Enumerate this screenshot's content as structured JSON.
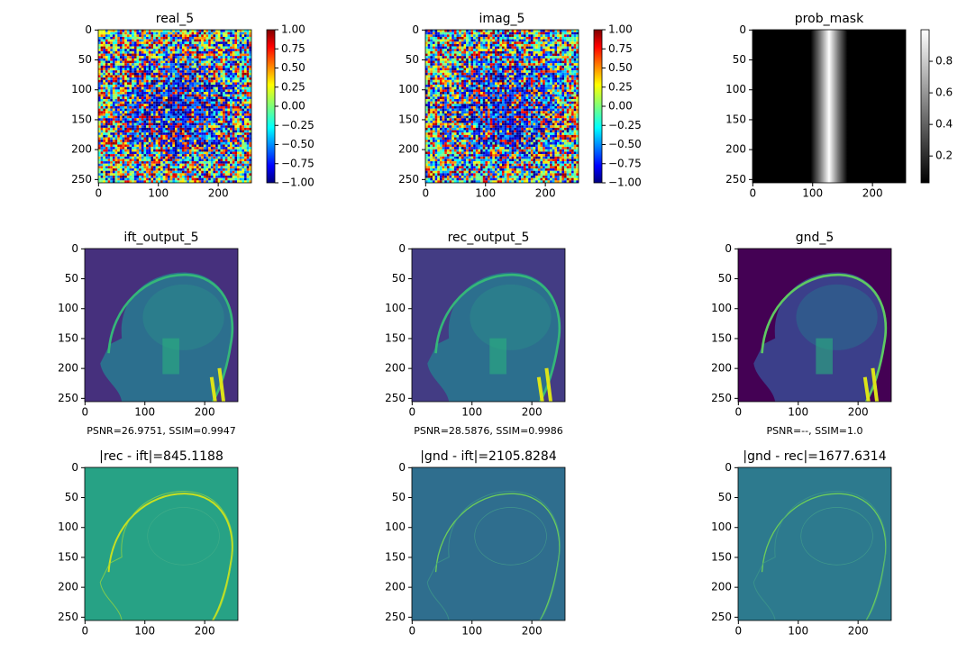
{
  "chart_data": [
    {
      "type": "image",
      "title": "real_5",
      "colormap": "jet",
      "xlim": [
        -0.5,
        255.5
      ],
      "ylim": [
        255.5,
        -0.5
      ],
      "xticks": [
        0,
        100,
        200
      ],
      "yticks": [
        0,
        50,
        100,
        150,
        200,
        250
      ],
      "colorbar": {
        "lim": [
          -1,
          1
        ],
        "ticks": [
          {
            "value": 1,
            "label": "1.00"
          },
          0.75,
          {
            "value": 0.5,
            "label": "0.50"
          },
          0.25,
          {
            "value": 0,
            "label": "0.00"
          },
          {
            "value": -0.25,
            "label": "−0.25"
          },
          {
            "value": -0.5,
            "label": "−0.50"
          },
          {
            "value": -0.75,
            "label": "−0.75"
          },
          {
            "value": -1,
            "label": "−1.00"
          }
        ]
      }
    },
    {
      "type": "image",
      "title": "imag_5",
      "colormap": "jet",
      "xlim": [
        -0.5,
        255.5
      ],
      "ylim": [
        255.5,
        -0.5
      ],
      "xticks": [
        0,
        100,
        200
      ],
      "yticks": [
        0,
        50,
        100,
        150,
        200,
        250
      ],
      "colorbar": {
        "lim": [
          -1,
          1
        ],
        "ticks": [
          {
            "value": 1,
            "label": "1.00"
          },
          0.75,
          {
            "value": 0.5,
            "label": "0.50"
          },
          0.25,
          {
            "value": 0,
            "label": "0.00"
          },
          {
            "value": -0.25,
            "label": "−0.25"
          },
          {
            "value": -0.5,
            "label": "−0.50"
          },
          {
            "value": -0.75,
            "label": "−0.75"
          },
          {
            "value": -1,
            "label": "−1.00"
          }
        ]
      }
    },
    {
      "type": "image",
      "title": "prob_mask",
      "colormap": "gray",
      "xlim": [
        -0.5,
        255.5
      ],
      "ylim": [
        255.5,
        -0.5
      ],
      "xticks": [
        0,
        100,
        200
      ],
      "yticks": [
        0,
        50,
        100,
        150,
        200,
        250
      ],
      "colorbar": {
        "lim": [
          0.03,
          1.0
        ],
        "ticks": [
          0.2,
          0.4,
          0.6,
          0.8
        ]
      }
    },
    {
      "type": "image",
      "title": "ift_output_5",
      "colormap": "viridis",
      "xlim": [
        -0.5,
        255.5
      ],
      "ylim": [
        255.5,
        -0.5
      ],
      "xticks": [
        0,
        100,
        200
      ],
      "yticks": [
        0,
        50,
        100,
        150,
        200,
        250
      ],
      "xlabel": "PSNR=26.9751, SSIM=0.9947"
    },
    {
      "type": "image",
      "title": "rec_output_5",
      "colormap": "viridis",
      "xlim": [
        -0.5,
        255.5
      ],
      "ylim": [
        255.5,
        -0.5
      ],
      "xticks": [
        0,
        100,
        200
      ],
      "yticks": [
        0,
        50,
        100,
        150,
        200,
        250
      ],
      "xlabel": "PSNR=28.5876, SSIM=0.9986"
    },
    {
      "type": "image",
      "title": "gnd_5",
      "colormap": "viridis",
      "xlim": [
        -0.5,
        255.5
      ],
      "ylim": [
        255.5,
        -0.5
      ],
      "xticks": [
        0,
        100,
        200
      ],
      "yticks": [
        0,
        50,
        100,
        150,
        200,
        250
      ],
      "xlabel": "PSNR=--, SSIM=1.0"
    },
    {
      "type": "image",
      "title": "|rec - ift|=845.1188",
      "colormap": "viridis",
      "xlim": [
        -0.5,
        255.5
      ],
      "ylim": [
        255.5,
        -0.5
      ],
      "xticks": [
        0,
        100,
        200
      ],
      "yticks": [
        0,
        50,
        100,
        150,
        200,
        250
      ]
    },
    {
      "type": "image",
      "title": "|gnd - ift|=2105.8284",
      "colormap": "viridis",
      "xlim": [
        -0.5,
        255.5
      ],
      "ylim": [
        255.5,
        -0.5
      ],
      "xticks": [
        0,
        100,
        200
      ],
      "yticks": [
        0,
        50,
        100,
        150,
        200,
        250
      ]
    },
    {
      "type": "image",
      "title": "|gnd - rec|=1677.6314",
      "colormap": "viridis",
      "xlim": [
        -0.5,
        255.5
      ],
      "ylim": [
        255.5,
        -0.5
      ],
      "xticks": [
        0,
        100,
        200
      ],
      "yticks": [
        0,
        50,
        100,
        150,
        200,
        250
      ]
    }
  ]
}
